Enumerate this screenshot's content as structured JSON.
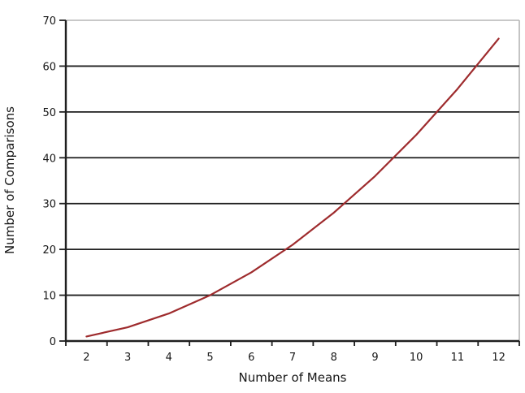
{
  "chart_data": {
    "type": "line",
    "title": "",
    "xlabel": "Number of Means",
    "ylabel": "Number of Comparisons",
    "x": [
      2,
      3,
      4,
      5,
      6,
      7,
      8,
      9,
      10,
      11,
      12
    ],
    "series": [
      {
        "name": "number-of-comparisons",
        "values": [
          1,
          3,
          6,
          10,
          15,
          21,
          28,
          36,
          45,
          55,
          66
        ]
      }
    ],
    "ylim": [
      0,
      70
    ],
    "y_ticks": [
      0,
      10,
      20,
      30,
      40,
      50,
      60,
      70
    ],
    "x_tick_labels": [
      "2",
      "3",
      "4",
      "5",
      "6",
      "7",
      "8",
      "9",
      "10",
      "11",
      "12"
    ],
    "grid": "horizontal-black-lines",
    "legend": "none",
    "colors": {
      "line": "#9e2b2d",
      "axis": "#1f1f1f",
      "gridline": "#1f1f1f",
      "plot_border": "#b5b5b5",
      "text": "#161616",
      "background": "#ffffff"
    }
  }
}
